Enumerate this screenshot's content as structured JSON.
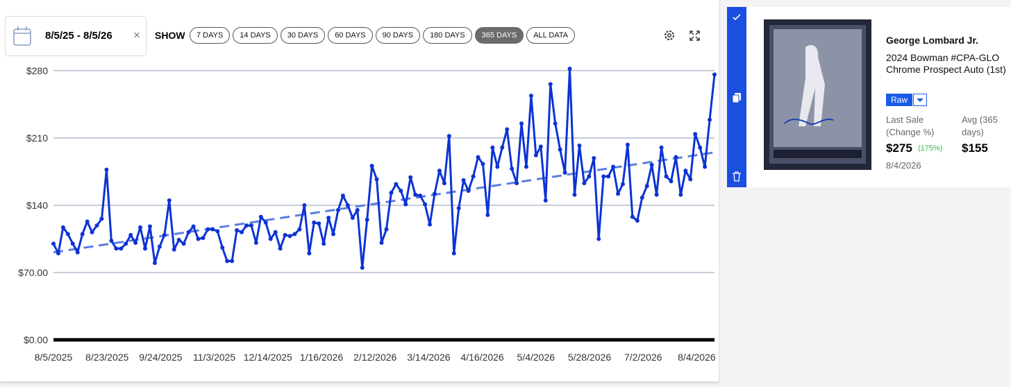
{
  "date_range": "8/5/25 - 8/5/26",
  "show_label": "SHOW",
  "range_buttons": [
    "7 DAYS",
    "14 DAYS",
    "30 DAYS",
    "60 DAYS",
    "90 DAYS",
    "180 DAYS",
    "365 DAYS",
    "ALL DATA"
  ],
  "active_range": 6,
  "chart_data": {
    "type": "line",
    "color": "#0c33d4",
    "grid": true,
    "x_labels": [
      "8/5/2025",
      "8/23/2025",
      "9/24/2025",
      "11/3/2025",
      "12/14/2025",
      "1/16/2026",
      "2/12/2026",
      "3/14/2026",
      "4/16/2026",
      "5/4/2026",
      "5/28/2026",
      "7/2/2026",
      "8/4/2026"
    ],
    "values": [
      100,
      90,
      117,
      110,
      100,
      91,
      110,
      123,
      112,
      119,
      126,
      177,
      103,
      95,
      95,
      100,
      109,
      101,
      117,
      95,
      118,
      80,
      97,
      109,
      145,
      94,
      104,
      100,
      112,
      118,
      105,
      106,
      115,
      115,
      113,
      96,
      82,
      82,
      114,
      112,
      119,
      119,
      101,
      128,
      122,
      105,
      112,
      95,
      109,
      108,
      110,
      115,
      140,
      90,
      122,
      121,
      100,
      127,
      110,
      135,
      150,
      140,
      127,
      135,
      75,
      125,
      181,
      167,
      101,
      115,
      153,
      162,
      155,
      141,
      169,
      151,
      150,
      141,
      120,
      152,
      176,
      163,
      212,
      90,
      137,
      166,
      155,
      170,
      190,
      183,
      130,
      200,
      180,
      200,
      219,
      178,
      163,
      225,
      180,
      254,
      192,
      201,
      145,
      266,
      225,
      198,
      174,
      282,
      151,
      202,
      163,
      170,
      189,
      105,
      170,
      170,
      180,
      152,
      162,
      203,
      128,
      124,
      148,
      160,
      182,
      151,
      200,
      170,
      165,
      190,
      151,
      176,
      167,
      214,
      200,
      180,
      229,
      276
    ],
    "trend": {
      "values": [
        91,
        195
      ],
      "color": "#5b7de0"
    },
    "ylim": [
      0,
      285
    ],
    "yticks": [
      {
        "value": 0,
        "label": "$0.00"
      },
      {
        "value": 70,
        "label": "$70.00"
      },
      {
        "value": 140,
        "label": "$140"
      },
      {
        "value": 210,
        "label": "$210"
      },
      {
        "value": 280,
        "label": "$280"
      }
    ]
  },
  "card": {
    "name": "George Lombard Jr.",
    "title": "2024 Bowman #CPA-GLO Chrome Prospect Auto (1st)",
    "grade": "Raw",
    "last_sale_label": "Last Sale (Change %)",
    "last_sale": "$275",
    "change": "(175%)",
    "avg_label": "Avg (365 days)",
    "avg": "$155",
    "date": "8/4/2026"
  }
}
